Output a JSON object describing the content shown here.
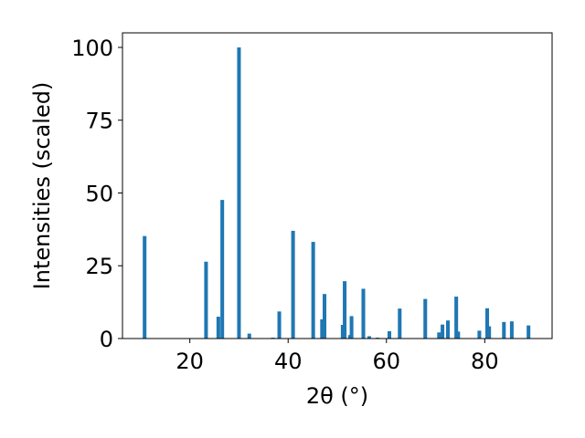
{
  "chart_data": {
    "type": "bar",
    "title": "",
    "xlabel": "2θ (°)",
    "ylabel": "Intensities (scaled)",
    "xlim": [
      6.3,
      93.7
    ],
    "ylim": [
      0,
      105
    ],
    "xticks": [
      20,
      40,
      60,
      80
    ],
    "yticks": [
      0,
      25,
      50,
      75,
      100
    ],
    "grid": false,
    "bar_width": 0.75,
    "bar_color": "#1f77b4",
    "x": [
      10.8,
      23.3,
      25.8,
      26.6,
      30.0,
      32.1,
      36.9,
      38.2,
      41.0,
      45.1,
      46.9,
      47.4,
      51.1,
      51.5,
      52.6,
      52.9,
      55.3,
      56.5,
      58.2,
      60.6,
      62.7,
      67.9,
      70.7,
      71.4,
      72.5,
      74.2,
      74.6,
      78.9,
      80.5,
      80.9,
      83.9,
      85.5,
      88.9
    ],
    "y": [
      35.2,
      26.4,
      7.5,
      47.6,
      100.0,
      1.7,
      0.3,
      9.3,
      37.0,
      33.2,
      6.6,
      15.3,
      4.7,
      19.7,
      1.2,
      7.7,
      17.1,
      0.8,
      0.3,
      2.5,
      10.3,
      13.6,
      2.1,
      4.8,
      6.2,
      14.4,
      2.4,
      2.7,
      10.4,
      4.2,
      5.7,
      5.9,
      4.5
    ]
  }
}
